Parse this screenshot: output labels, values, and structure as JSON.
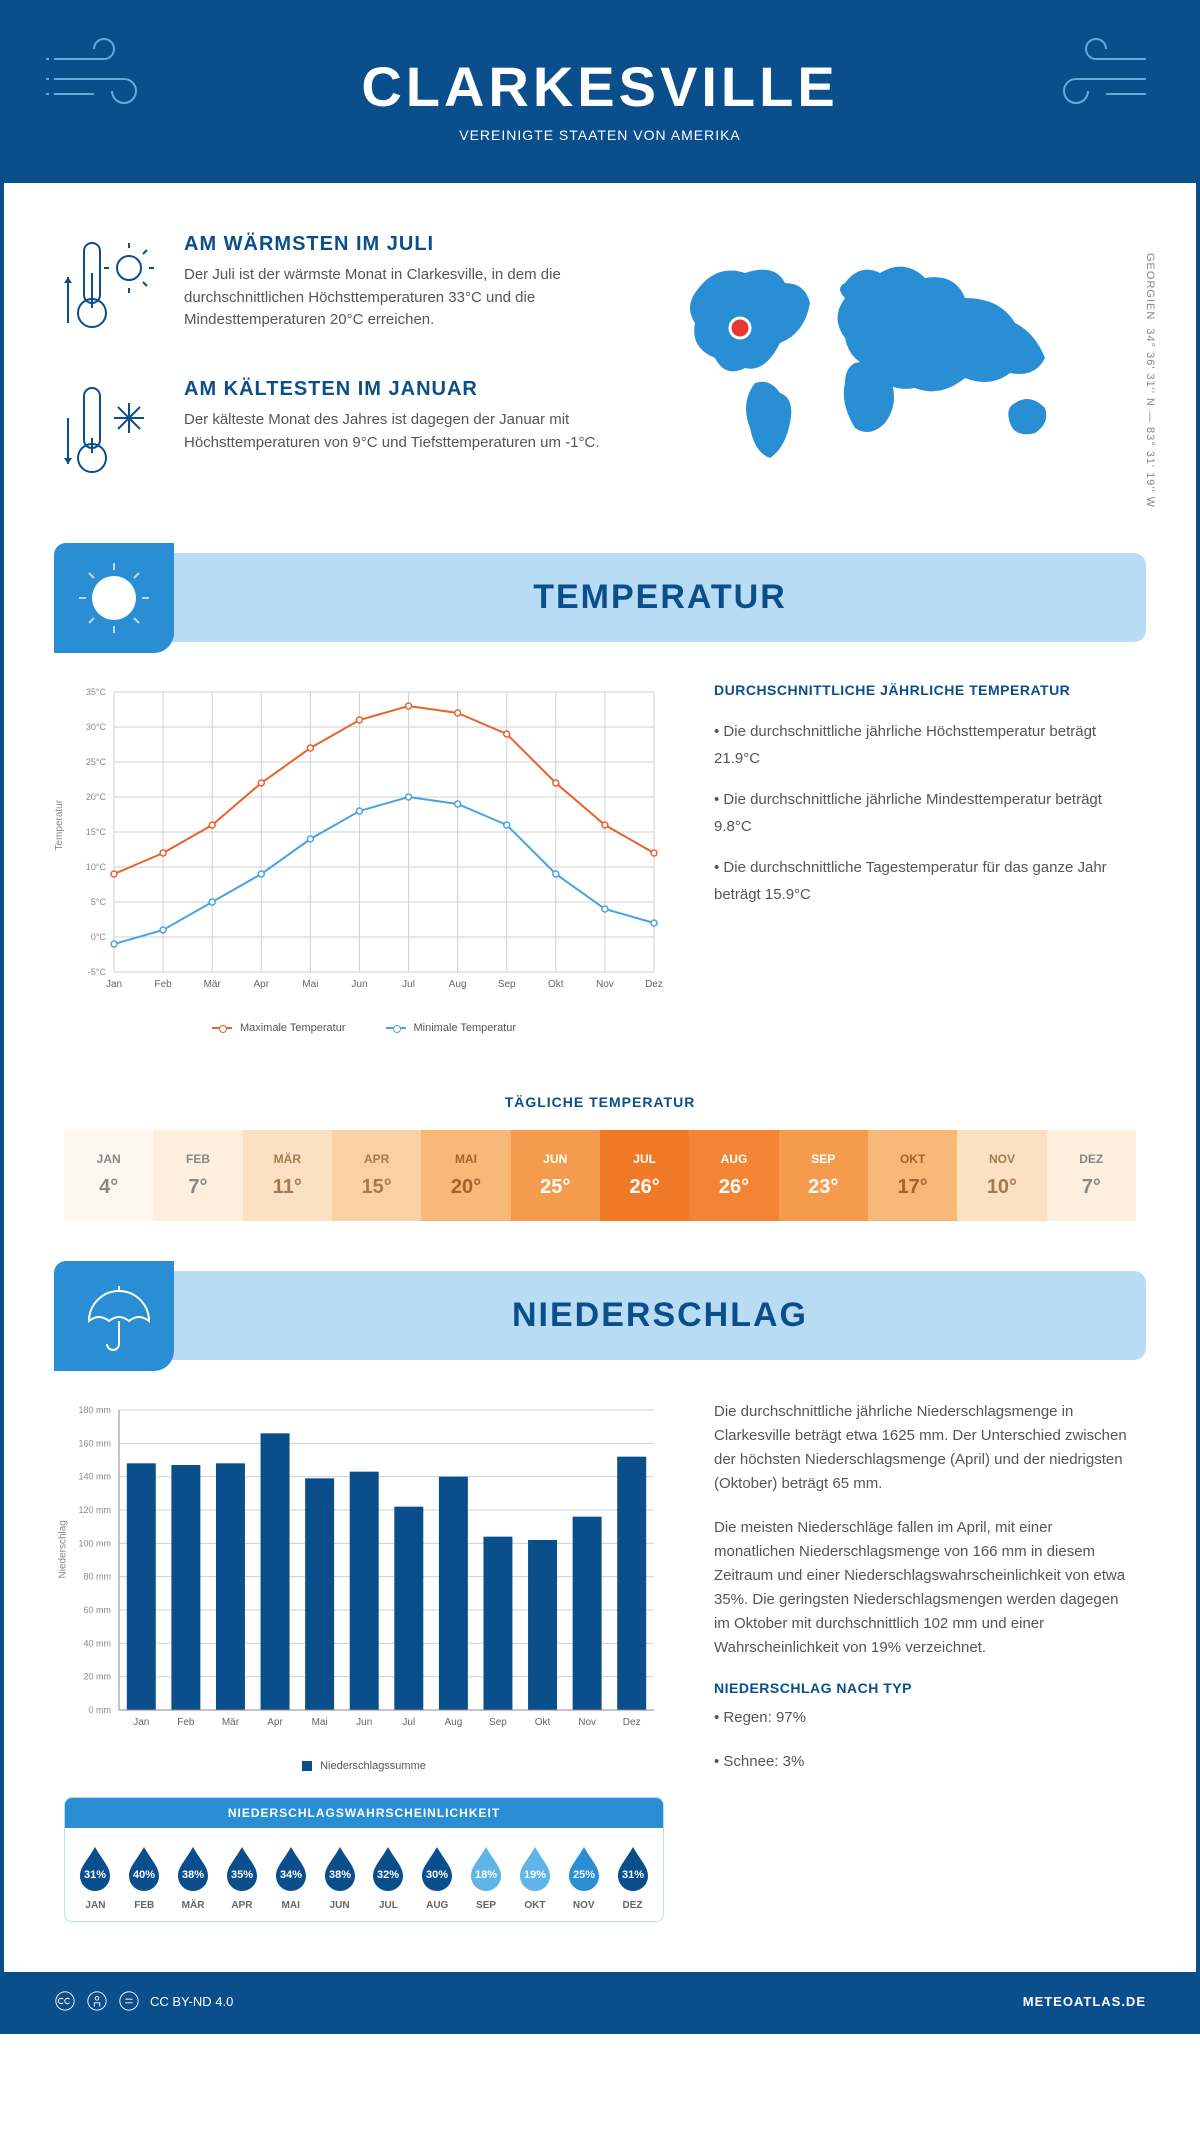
{
  "header": {
    "title": "CLARKESVILLE",
    "subtitle": "VEREINIGTE STAATEN VON AMERIKA"
  },
  "coords": {
    "text": "34° 36' 31'' N — 83° 31' 19'' W",
    "region": "GEORGIEN"
  },
  "facts": {
    "warm": {
      "title": "AM WÄRMSTEN IM JULI",
      "body": "Der Juli ist der wärmste Monat in Clarkesville, in dem die durchschnittlichen Höchsttemperaturen 33°C und die Mindesttemperaturen 20°C erreichen."
    },
    "cold": {
      "title": "AM KÄLTESTEN IM JANUAR",
      "body": "Der kälteste Monat des Jahres ist dagegen der Januar mit Höchsttemperaturen von 9°C und Tiefsttemperaturen um -1°C."
    }
  },
  "sections": {
    "temp": "TEMPERATUR",
    "precip": "NIEDERSCHLAG"
  },
  "temp_chart": {
    "type": "line",
    "months": [
      "Jan",
      "Feb",
      "Mär",
      "Apr",
      "Mai",
      "Jun",
      "Jul",
      "Aug",
      "Sep",
      "Okt",
      "Nov",
      "Dez"
    ],
    "max": [
      9,
      12,
      16,
      22,
      27,
      31,
      33,
      32,
      29,
      22,
      16,
      12
    ],
    "min": [
      -1,
      1,
      5,
      9,
      14,
      18,
      20,
      19,
      16,
      9,
      4,
      2
    ],
    "max_color": "#e8622d",
    "min_color": "#4aa3e0",
    "grid_color": "#d0d0d0",
    "ylim": [
      -5,
      35
    ],
    "ytick_step": 5,
    "ylabel": "Temperatur",
    "legend_max": "Maximale Temperatur",
    "legend_min": "Minimale Temperatur"
  },
  "temp_text": {
    "heading": "DURCHSCHNITTLICHE JÄHRLICHE TEMPERATUR",
    "l1": "• Die durchschnittliche jährliche Höchsttemperatur beträgt 21.9°C",
    "l2": "• Die durchschnittliche jährliche Mindesttemperatur beträgt 9.8°C",
    "l3": "• Die durchschnittliche Tagestemperatur für das ganze Jahr beträgt 15.9°C"
  },
  "daily": {
    "title": "TÄGLICHE TEMPERATUR",
    "months": [
      "JAN",
      "FEB",
      "MÄR",
      "APR",
      "MAI",
      "JUN",
      "JUL",
      "AUG",
      "SEP",
      "OKT",
      "NOV",
      "DEZ"
    ],
    "values": [
      "4°",
      "7°",
      "11°",
      "15°",
      "20°",
      "25°",
      "26°",
      "26°",
      "23°",
      "17°",
      "10°",
      "7°"
    ],
    "bg_colors": [
      "#fef7ef",
      "#fdeedd",
      "#fbe0c2",
      "#fad1a4",
      "#f8b877",
      "#f59b4e",
      "#f07a28",
      "#f28433",
      "#f59b4e",
      "#f8b877",
      "#fbe0c2",
      "#fdeedd"
    ],
    "text_colors": [
      "#888",
      "#888",
      "#a67a4f",
      "#a67a4f",
      "#a6612c",
      "#fff",
      "#fff",
      "#fff",
      "#fff",
      "#a6612c",
      "#a67a4f",
      "#888"
    ]
  },
  "precip_chart": {
    "type": "bar",
    "months": [
      "Jan",
      "Feb",
      "Mär",
      "Apr",
      "Mai",
      "Jun",
      "Jul",
      "Aug",
      "Sep",
      "Okt",
      "Nov",
      "Dez"
    ],
    "values": [
      148,
      147,
      148,
      166,
      139,
      143,
      122,
      140,
      104,
      102,
      116,
      152
    ],
    "bar_color": "#0a4e8c",
    "grid_color": "#d0d0d0",
    "ylim": [
      0,
      180
    ],
    "ytick_step": 20,
    "ylabel": "Niederschlag",
    "legend": "Niederschlagssumme"
  },
  "precip_text": {
    "p1": "Die durchschnittliche jährliche Niederschlagsmenge in Clarkesville beträgt etwa 1625 mm. Der Unterschied zwischen der höchsten Niederschlagsmenge (April) und der niedrigsten (Oktober) beträgt 65 mm.",
    "p2": "Die meisten Niederschläge fallen im April, mit einer monatlichen Niederschlagsmenge von 166 mm in diesem Zeitraum und einer Niederschlagswahrscheinlichkeit von etwa 35%. Die geringsten Niederschlagsmengen werden dagegen im Oktober mit durchschnittlich 102 mm und einer Wahrscheinlichkeit von 19% verzeichnet.",
    "type_heading": "NIEDERSCHLAG NACH TYP",
    "t1": "• Regen: 97%",
    "t2": "• Schnee: 3%"
  },
  "prob": {
    "title": "NIEDERSCHLAGSWAHRSCHEINLICHKEIT",
    "months": [
      "JAN",
      "FEB",
      "MÄR",
      "APR",
      "MAI",
      "JUN",
      "JUL",
      "AUG",
      "SEP",
      "OKT",
      "NOV",
      "DEZ"
    ],
    "pct": [
      "31%",
      "40%",
      "38%",
      "35%",
      "34%",
      "38%",
      "32%",
      "30%",
      "18%",
      "19%",
      "25%",
      "31%"
    ],
    "colors": [
      "#0a4e8c",
      "#0a4e8c",
      "#0a4e8c",
      "#0a4e8c",
      "#0a4e8c",
      "#0a4e8c",
      "#0a4e8c",
      "#0a4e8c",
      "#5fb4e8",
      "#5fb4e8",
      "#2a8ed4",
      "#0a4e8c"
    ]
  },
  "footer": {
    "license": "CC BY-ND 4.0",
    "brand": "METEOATLAS.DE"
  }
}
